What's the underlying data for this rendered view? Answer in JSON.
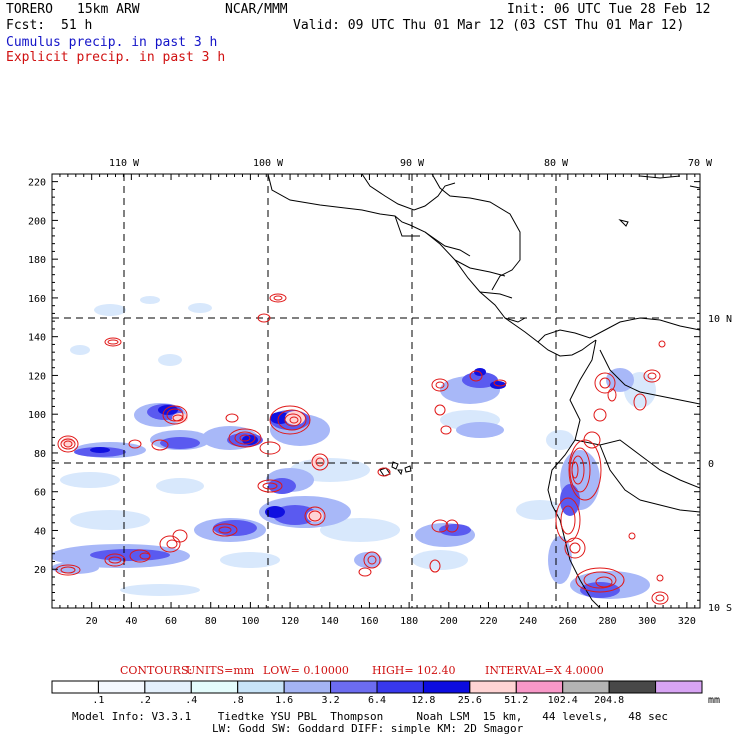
{
  "header": {
    "model": "TORERO",
    "resolution": "15km ARW",
    "org": "NCAR/MMM",
    "init": "Init: 06 UTC Tue 28 Feb 12",
    "fcst_label": "Fcst:",
    "fcst_value": "51 h",
    "valid": "Valid: 09 UTC Thu 01 Mar 12 (03 CST Thu 01 Mar 12)",
    "legend_cumulus": "Cumulus precip. in past 3 h",
    "legend_explicit": "Explicit precip. in past 3 h"
  },
  "map": {
    "lon_labels": [
      "110 W",
      "100 W",
      "90 W",
      "80 W",
      "70 W"
    ],
    "lat_labels": [
      "10 N",
      "0",
      "10 S"
    ],
    "y_ticks": [
      "220",
      "200",
      "180",
      "160",
      "140",
      "120",
      "100",
      "80",
      "60",
      "40",
      "20"
    ],
    "x_ticks": [
      "20",
      "40",
      "60",
      "80",
      "100",
      "120",
      "140",
      "160",
      "180",
      "200",
      "220",
      "240",
      "260",
      "280",
      "300",
      "320"
    ],
    "colors": {
      "coast": "#000000",
      "cumulus_dark": "#1010e0",
      "cumulus_mid": "#5a5af0",
      "cumulus_light": "#a8b8f8",
      "cumulus_faint": "#d8e8fc",
      "explicit": "#e01818"
    }
  },
  "contours": {
    "label": "CONTOURS:",
    "units": "UNITS=mm",
    "low": "LOW= 0.10000",
    "high": "HIGH= 102.40",
    "interval": "INTERVAL=X 4.0000"
  },
  "scale": {
    "labels": [
      ".1",
      ".2",
      ".4",
      ".8",
      "1.6",
      "3.2",
      "6.4",
      "12.8",
      "25.6",
      "51.2",
      "102.4",
      "204.8"
    ],
    "unit": "mm",
    "colors": [
      "#ffffff",
      "#f4f8fe",
      "#e4f0fc",
      "#e4fcfc",
      "#c8e4f8",
      "#a4b4f4",
      "#6c6cf0",
      "#3838ec",
      "#0c0ce0",
      "#ffd4d4",
      "#f898c8",
      "#b4b4b4",
      "#484848",
      "#d8a4f4"
    ]
  },
  "footer": {
    "line1": "Model Info: V3.3.1    Tiedtke YSU PBL  Thompson     Noah LSM  15 km,   44 levels,   48 sec",
    "line2": "LW: Godd SW: Goddard DIFF: simple KM: 2D Smagor"
  }
}
